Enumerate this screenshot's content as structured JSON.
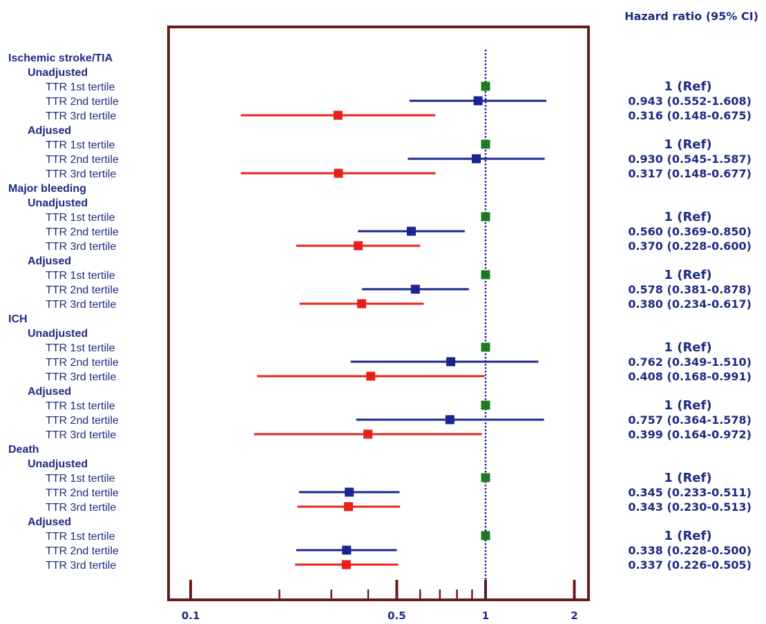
{
  "chart_data": {
    "type": "forest",
    "title": "",
    "xlabel": "",
    "ylabel": "",
    "x_scale": "log",
    "xlim": [
      0.08,
      2.3
    ],
    "xticks_labeled": [
      0.1,
      0.5,
      1,
      2
    ],
    "xtick_labels": [
      "0.1",
      "0.5",
      "1",
      "2"
    ],
    "xticks_minor": [
      0.2,
      0.3,
      0.4,
      0.6,
      0.7,
      0.8,
      0.9
    ],
    "reference_line": 1,
    "value_column_header": "Hazard ratio (95% CI)",
    "colors": {
      "frame": "#6b1a1a",
      "text": "#1f2a80",
      "tertile1": "#1e7a1e",
      "tertile2": "#1a2390",
      "tertile3": "#e8201c",
      "refline": "#1a2390"
    },
    "rows": [
      {
        "kind": "outcome",
        "label": "Ischemic stroke/TIA"
      },
      {
        "kind": "model",
        "label": "Unadjusted"
      },
      {
        "kind": "est",
        "label": "TTR 1st tertile",
        "tertile": 1,
        "hr": 1,
        "lo": null,
        "hi": null,
        "text": "1 (Ref)"
      },
      {
        "kind": "est",
        "label": "TTR 2nd tertile",
        "tertile": 2,
        "hr": 0.943,
        "lo": 0.552,
        "hi": 1.608,
        "text": "0.943 (0.552-1.608)"
      },
      {
        "kind": "est",
        "label": "TTR 3rd tertile",
        "tertile": 3,
        "hr": 0.316,
        "lo": 0.148,
        "hi": 0.675,
        "text": "0.316 (0.148-0.675)"
      },
      {
        "kind": "model",
        "label": "Adjused"
      },
      {
        "kind": "est",
        "label": "TTR 1st tertile",
        "tertile": 1,
        "hr": 1,
        "lo": null,
        "hi": null,
        "text": "1 (Ref)"
      },
      {
        "kind": "est",
        "label": "TTR 2nd tertile",
        "tertile": 2,
        "hr": 0.93,
        "lo": 0.545,
        "hi": 1.587,
        "text": "0.930 (0.545-1.587)"
      },
      {
        "kind": "est",
        "label": "TTR 3rd tertile",
        "tertile": 3,
        "hr": 0.317,
        "lo": 0.148,
        "hi": 0.677,
        "text": "0.317 (0.148-0.677)"
      },
      {
        "kind": "outcome",
        "label": "Major bleeding"
      },
      {
        "kind": "model",
        "label": "Unadjusted"
      },
      {
        "kind": "est",
        "label": "TTR 1st tertile",
        "tertile": 1,
        "hr": 1,
        "lo": null,
        "hi": null,
        "text": "1 (Ref)"
      },
      {
        "kind": "est",
        "label": "TTR 2nd tertile",
        "tertile": 2,
        "hr": 0.56,
        "lo": 0.369,
        "hi": 0.85,
        "text": "0.560 (0.369-0.850)"
      },
      {
        "kind": "est",
        "label": "TTR 3rd tertile",
        "tertile": 3,
        "hr": 0.37,
        "lo": 0.228,
        "hi": 0.6,
        "text": "0.370 (0.228-0.600)"
      },
      {
        "kind": "model",
        "label": "Adjused"
      },
      {
        "kind": "est",
        "label": "TTR 1st tertile",
        "tertile": 1,
        "hr": 1,
        "lo": null,
        "hi": null,
        "text": "1 (Ref)"
      },
      {
        "kind": "est",
        "label": "TTR 2nd tertile",
        "tertile": 2,
        "hr": 0.578,
        "lo": 0.381,
        "hi": 0.878,
        "text": "0.578 (0.381-0.878)"
      },
      {
        "kind": "est",
        "label": "TTR 3rd tertile",
        "tertile": 3,
        "hr": 0.38,
        "lo": 0.234,
        "hi": 0.617,
        "text": "0.380 (0.234-0.617)"
      },
      {
        "kind": "outcome",
        "label": "ICH"
      },
      {
        "kind": "model",
        "label": "Unadjusted"
      },
      {
        "kind": "est",
        "label": "TTR 1st tertile",
        "tertile": 1,
        "hr": 1,
        "lo": null,
        "hi": null,
        "text": "1 (Ref)"
      },
      {
        "kind": "est",
        "label": "TTR 2nd tertile",
        "tertile": 2,
        "hr": 0.762,
        "lo": 0.349,
        "hi": 1.51,
        "text": "0.762 (0.349-1.510)"
      },
      {
        "kind": "est",
        "label": "TTR 3rd tertile",
        "tertile": 3,
        "hr": 0.408,
        "lo": 0.168,
        "hi": 0.991,
        "text": "0.408 (0.168-0.991)"
      },
      {
        "kind": "model",
        "label": "Adjused"
      },
      {
        "kind": "est",
        "label": "TTR 1st tertile",
        "tertile": 1,
        "hr": 1,
        "lo": null,
        "hi": null,
        "text": "1 (Ref)"
      },
      {
        "kind": "est",
        "label": "TTR 2nd tertile",
        "tertile": 2,
        "hr": 0.757,
        "lo": 0.364,
        "hi": 1.578,
        "text": "0.757 (0.364-1.578)"
      },
      {
        "kind": "est",
        "label": "TTR 3rd tertile",
        "tertile": 3,
        "hr": 0.399,
        "lo": 0.164,
        "hi": 0.972,
        "text": "0.399 (0.164-0.972)"
      },
      {
        "kind": "outcome",
        "label": "Death"
      },
      {
        "kind": "model",
        "label": "Unadjusted"
      },
      {
        "kind": "est",
        "label": "TTR 1st tertile",
        "tertile": 1,
        "hr": 1,
        "lo": null,
        "hi": null,
        "text": "1 (Ref)"
      },
      {
        "kind": "est",
        "label": "TTR 2nd tertile",
        "tertile": 2,
        "hr": 0.345,
        "lo": 0.233,
        "hi": 0.511,
        "text": "0.345 (0.233-0.511)"
      },
      {
        "kind": "est",
        "label": "TTR 3rd tertile",
        "tertile": 3,
        "hr": 0.343,
        "lo": 0.23,
        "hi": 0.513,
        "text": "0.343 (0.230-0.513)"
      },
      {
        "kind": "model",
        "label": "Adjused"
      },
      {
        "kind": "est",
        "label": "TTR 1st tertile",
        "tertile": 1,
        "hr": 1,
        "lo": null,
        "hi": null,
        "text": "1 (Ref)"
      },
      {
        "kind": "est",
        "label": "TTR 2nd tertile",
        "tertile": 2,
        "hr": 0.338,
        "lo": 0.228,
        "hi": 0.5,
        "text": "0.338 (0.228-0.500)"
      },
      {
        "kind": "est",
        "label": "TTR 3rd tertile",
        "tertile": 3,
        "hr": 0.337,
        "lo": 0.226,
        "hi": 0.505,
        "text": "0.337 (0.226-0.505)"
      }
    ]
  }
}
